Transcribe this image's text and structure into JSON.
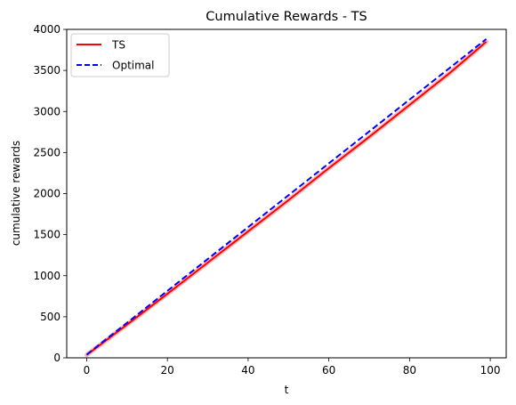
{
  "chart_data": {
    "type": "line",
    "title": "Cumulative Rewards - TS",
    "xlabel": "t",
    "ylabel": "cumulative rewards",
    "xlim": [
      -4.95,
      103.95
    ],
    "ylim": [
      0,
      4000
    ],
    "x_ticks": [
      "0",
      "20",
      "40",
      "60",
      "80",
      "100"
    ],
    "y_ticks": [
      "0",
      "500",
      "1000",
      "1500",
      "2000",
      "2500",
      "3000",
      "3500",
      "4000"
    ],
    "grid": false,
    "legend_position": "top-left",
    "series": [
      {
        "name": "TS",
        "color": "#ff0000",
        "style": "solid",
        "band_color": "#ff8080",
        "points": [
          [
            0,
            35
          ],
          [
            10,
            405
          ],
          [
            20,
            780
          ],
          [
            30,
            1160
          ],
          [
            40,
            1540
          ],
          [
            50,
            1920
          ],
          [
            60,
            2310
          ],
          [
            70,
            2690
          ],
          [
            80,
            3080
          ],
          [
            90,
            3470
          ],
          [
            99,
            3850
          ]
        ]
      },
      {
        "name": "Optimal",
        "color": "#0000ff",
        "style": "dashed",
        "points": [
          [
            0,
            39
          ],
          [
            99,
            3882
          ]
        ]
      }
    ]
  }
}
